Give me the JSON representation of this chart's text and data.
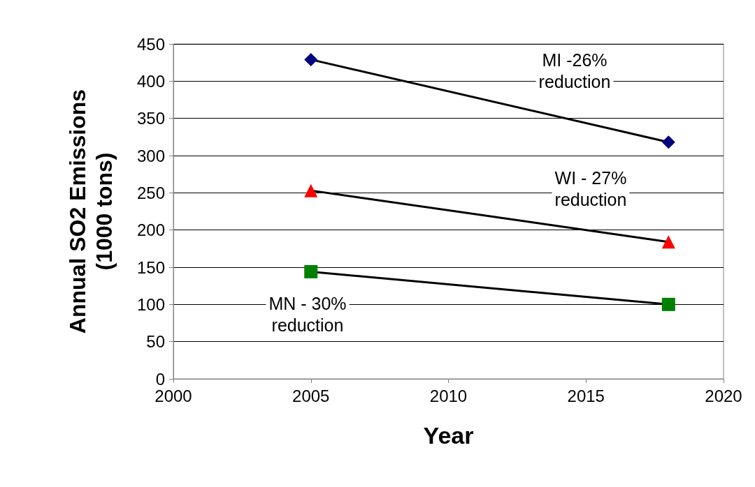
{
  "chart_data": {
    "type": "line",
    "xlabel": "Year",
    "ylabel": "Annual SO2 Emissions\n(1000 tons)",
    "xlim": [
      2000,
      2020
    ],
    "xticks": [
      2000,
      2005,
      2010,
      2015,
      2020
    ],
    "ylim": [
      0,
      450
    ],
    "yticks": [
      0,
      50,
      100,
      150,
      200,
      250,
      300,
      350,
      400,
      450
    ],
    "grid": "y",
    "x": [
      2005,
      2018
    ],
    "series": [
      {
        "values": [
          429,
          318
        ],
        "color": "#000080",
        "marker": "diamond"
      },
      {
        "values": [
          253,
          184
        ],
        "color": "#ff0000",
        "marker": "triangle"
      },
      {
        "values": [
          144,
          100
        ],
        "color": "#008000",
        "marker": "square"
      }
    ],
    "annotations": [
      "MI -26%\nreduction",
      "WI - 27%\nreduction",
      "MN - 30%\nreduction"
    ]
  }
}
